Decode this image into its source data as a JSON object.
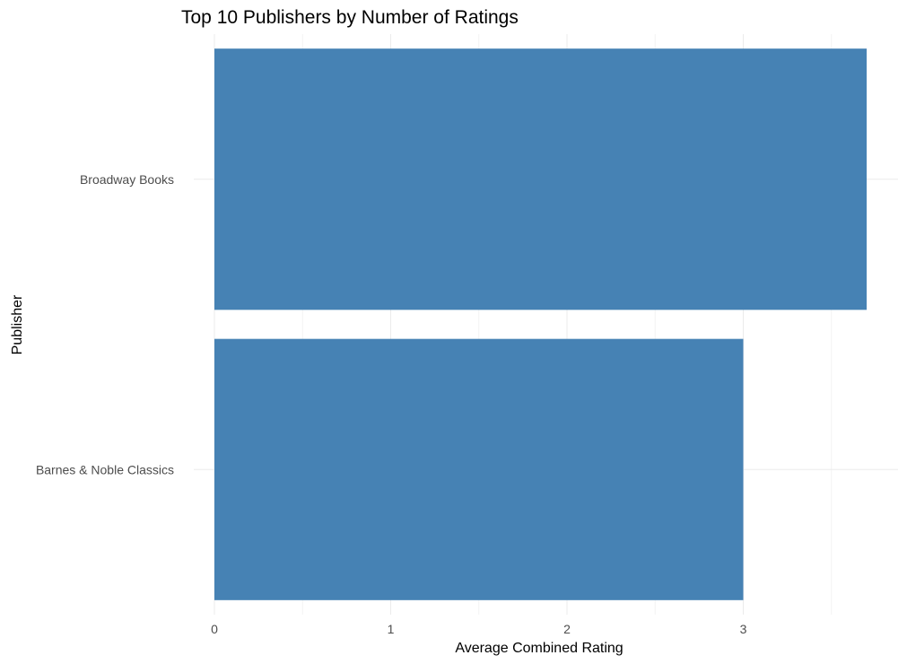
{
  "chart_data": {
    "type": "bar",
    "orientation": "horizontal",
    "title": "Top 10 Publishers by Number of Ratings",
    "xlabel": "Average Combined Rating",
    "ylabel": "Publisher",
    "categories": [
      "Barnes & Noble Classics",
      "Broadway Books"
    ],
    "values": [
      3.0,
      3.7
    ],
    "xlim": [
      0,
      3.9
    ],
    "xticks": [
      0,
      1,
      2,
      3
    ],
    "bar_color": "#4682b4",
    "grid": true,
    "legend": "none"
  }
}
